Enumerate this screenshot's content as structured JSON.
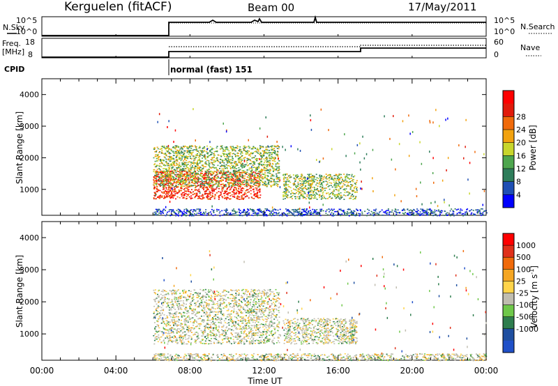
{
  "header": {
    "station": "Kerguelen (fitACF)",
    "beam": "Beam 00",
    "date": "17/May/2011"
  },
  "noise_panel": {
    "left_label": "N.Sky",
    "right_label": "N.Search",
    "left_ticks": [
      "10^5",
      "10^0"
    ],
    "right_ticks": [
      "10^5",
      "10^0"
    ]
  },
  "freq_panel": {
    "left_label_1": "Freq.",
    "left_label_2": "[MHz]",
    "right_label": "Nave",
    "left_ticks": [
      "18",
      "8"
    ],
    "right_ticks": [
      "60",
      "0"
    ]
  },
  "cpid": {
    "label": "CPID",
    "value": "normal (fast) 151"
  },
  "time_axis": {
    "label": "Time UT",
    "ticks": [
      "00:00",
      "04:00",
      "08:00",
      "12:00",
      "16:00",
      "20:00",
      "00:00"
    ]
  },
  "colors": {
    "power": [
      "#0000ff",
      "#1f4fb4",
      "#2e7d5a",
      "#4ea64e",
      "#c8d62c",
      "#f2a20f",
      "#f06a0a",
      "#e11a0a",
      "#ff0000"
    ],
    "velocity": [
      "#2050c8",
      "#1f4fa0",
      "#2e7d4e",
      "#6fc84a",
      "#c0bdb0",
      "#ffd44a",
      "#f5a623",
      "#f06a0a",
      "#e0301a",
      "#ff0000"
    ]
  },
  "chart_data": [
    {
      "type": "heatmap",
      "name": "power",
      "ylabel": "Slant Range [km]",
      "xlabel": "Time UT",
      "x_range_hours": [
        0,
        24
      ],
      "ylim": [
        180,
        4500
      ],
      "y_ticks": [
        1000,
        2000,
        3000,
        4000
      ],
      "colorbar": {
        "label": "Power [dB]",
        "ticks": [
          4,
          8,
          12,
          16,
          20,
          24,
          28
        ]
      },
      "echo_regions": [
        {
          "t_start": 6.0,
          "t_end": 11.8,
          "r_min": 700,
          "r_max": 1600,
          "level": "high"
        },
        {
          "t_start": 6.0,
          "t_end": 12.8,
          "r_min": 1100,
          "r_max": 2400,
          "level": "medium"
        },
        {
          "t_start": 13.0,
          "t_end": 17.0,
          "r_min": 700,
          "r_max": 1500,
          "level": "medium"
        },
        {
          "t_start": 6.0,
          "t_end": 24.0,
          "r_min": 180,
          "r_max": 400,
          "level": "low"
        }
      ]
    },
    {
      "type": "heatmap",
      "name": "velocity",
      "ylabel": "Slant Range [km]",
      "xlabel": "Time UT",
      "x_range_hours": [
        0,
        24
      ],
      "ylim": [
        180,
        4500
      ],
      "y_ticks": [
        1000,
        2000,
        3000,
        4000
      ],
      "colorbar": {
        "label": "Velocity [m s-1]",
        "label_main": "Velocity [m s",
        "label_sup": "-1",
        "label_end": "]",
        "ticks": [
          1000,
          500,
          100,
          25,
          -25,
          -100,
          -500,
          -1000
        ]
      },
      "echo_regions": [
        {
          "t_start": 6.0,
          "t_end": 12.8,
          "r_min": 700,
          "r_max": 2400,
          "level": "near-zero"
        },
        {
          "t_start": 13.0,
          "t_end": 17.0,
          "r_min": 700,
          "r_max": 1500,
          "level": "near-zero"
        },
        {
          "t_start": 6.0,
          "t_end": 24.0,
          "r_min": 180,
          "r_max": 400,
          "level": "near-zero"
        }
      ]
    }
  ]
}
